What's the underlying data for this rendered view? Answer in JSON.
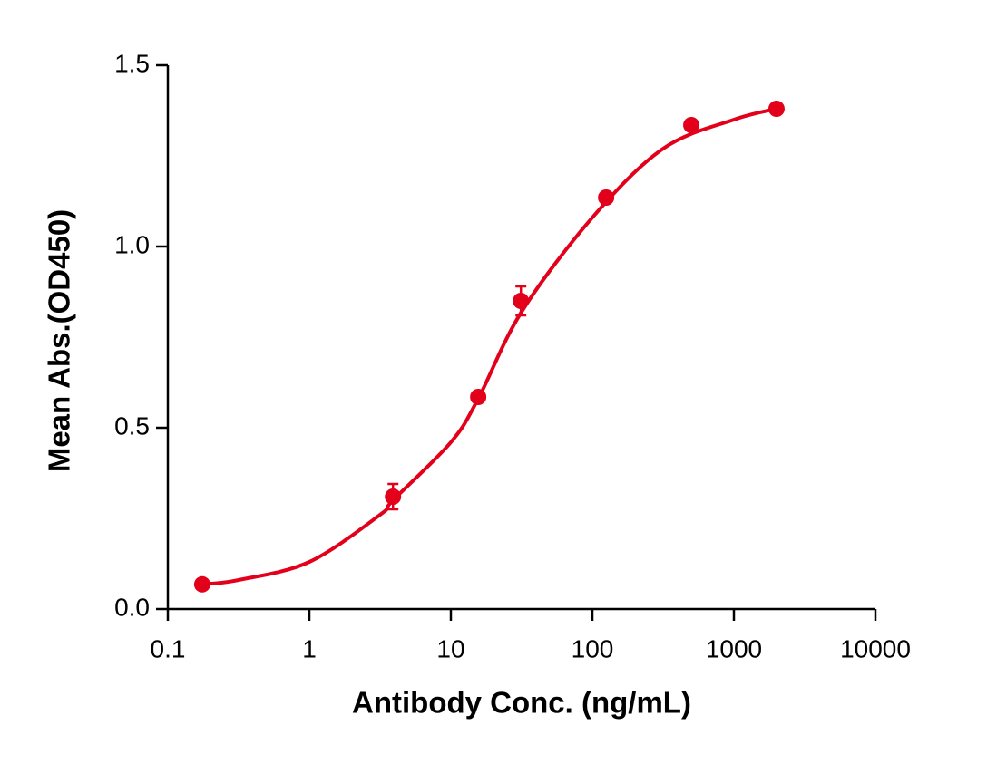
{
  "chart_data": {
    "type": "scatter",
    "xlabel": "Antibody Conc. (ng/mL)",
    "ylabel": "Mean Abs.(OD450)",
    "xscale": "log",
    "xlim": [
      0.1,
      10000
    ],
    "xticks": [
      0.1,
      1,
      10,
      100,
      1000,
      10000
    ],
    "ylim": [
      0,
      1.5
    ],
    "yticks": [
      {
        "value": 0,
        "label": "0.0"
      },
      {
        "value": 0.5,
        "label": "0.5"
      },
      {
        "value": 1,
        "label": "1.0"
      },
      {
        "value": 1.5,
        "label": "1.5"
      }
    ],
    "color": "#e3001b",
    "x": [
      0.175,
      3.9,
      15.6,
      31.25,
      125,
      500,
      2000
    ],
    "values": [
      0.068,
      0.31,
      0.585,
      0.85,
      1.135,
      1.335,
      1.38
    ],
    "errors": [
      null,
      0.035,
      null,
      0.04,
      null,
      null,
      null
    ],
    "curve": {
      "x": [
        0.175,
        0.316,
        1,
        3.16,
        3.9,
        10,
        15.6,
        31.6,
        100,
        316,
        1000,
        2000
      ],
      "y": [
        0.068,
        0.08,
        0.13,
        0.26,
        0.3,
        0.46,
        0.58,
        0.82,
        1.08,
        1.27,
        1.35,
        1.38
      ]
    }
  }
}
